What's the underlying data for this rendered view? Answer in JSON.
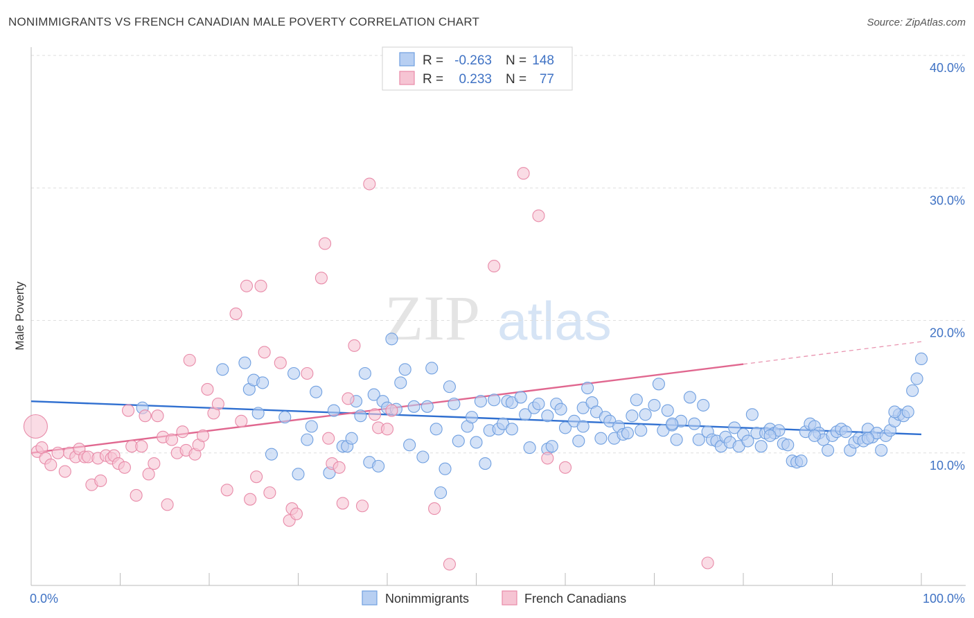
{
  "chart_data": {
    "type": "scatter",
    "title": "NONIMMIGRANTS VS FRENCH CANADIAN MALE POVERTY CORRELATION CHART",
    "source": "Source: ZipAtlas.com",
    "xlabel": "",
    "ylabel": "Male Poverty",
    "xlim": [
      0,
      100
    ],
    "ylim": [
      0,
      40
    ],
    "x_tick_labels": [
      "0.0%",
      "100.0%"
    ],
    "y_ticks": [
      10,
      20,
      30,
      40
    ],
    "y_tick_labels": [
      "10.0%",
      "20.0%",
      "30.0%",
      "40.0%"
    ],
    "grid": true,
    "legend_position": "top-center",
    "watermark": "ZIPatlas",
    "stats": [
      {
        "r_label": "R =",
        "r": "-0.263",
        "n_label": "N =",
        "n": "148"
      },
      {
        "r_label": "R =",
        "r": "0.233",
        "n_label": "N =",
        "n": "77"
      }
    ],
    "series": [
      {
        "name": "Nonimmigrants",
        "color": "#6f9fe0",
        "fill": "#b7cff2",
        "line_color": "#2f6fd0",
        "trend": {
          "x": [
            0,
            100
          ],
          "y": [
            13.9,
            11.4
          ]
        },
        "points": [
          [
            12.5,
            13.4
          ],
          [
            21.5,
            16.3
          ],
          [
            24.0,
            16.8
          ],
          [
            24.5,
            14.8
          ],
          [
            25.0,
            15.5
          ],
          [
            25.5,
            13.0
          ],
          [
            26.0,
            15.3
          ],
          [
            27.0,
            9.9
          ],
          [
            28.5,
            12.7
          ],
          [
            29.5,
            16.0
          ],
          [
            30.0,
            8.4
          ],
          [
            31.0,
            11.0
          ],
          [
            31.5,
            12.0
          ],
          [
            32.0,
            14.6
          ],
          [
            33.5,
            8.5
          ],
          [
            34.0,
            13.2
          ],
          [
            35.0,
            10.5
          ],
          [
            35.5,
            10.5
          ],
          [
            36.0,
            11.1
          ],
          [
            36.5,
            13.9
          ],
          [
            37.0,
            12.8
          ],
          [
            37.5,
            16.0
          ],
          [
            38.0,
            9.3
          ],
          [
            38.5,
            14.4
          ],
          [
            39.0,
            9.0
          ],
          [
            39.5,
            13.9
          ],
          [
            40.0,
            13.4
          ],
          [
            40.5,
            18.6
          ],
          [
            41.0,
            13.3
          ],
          [
            41.5,
            15.3
          ],
          [
            42.0,
            16.3
          ],
          [
            42.5,
            10.6
          ],
          [
            43.0,
            13.5
          ],
          [
            44.0,
            9.7
          ],
          [
            44.5,
            13.5
          ],
          [
            45.0,
            16.4
          ],
          [
            45.5,
            11.8
          ],
          [
            46.0,
            7.0
          ],
          [
            46.5,
            8.8
          ],
          [
            47.0,
            15.0
          ],
          [
            47.5,
            13.7
          ],
          [
            48.0,
            10.9
          ],
          [
            49.0,
            12.0
          ],
          [
            49.5,
            12.7
          ],
          [
            50.0,
            10.8
          ],
          [
            50.5,
            13.9
          ],
          [
            51.0,
            9.2
          ],
          [
            51.5,
            11.7
          ],
          [
            52.0,
            14.0
          ],
          [
            52.5,
            11.8
          ],
          [
            53.0,
            12.2
          ],
          [
            53.5,
            13.9
          ],
          [
            54.0,
            13.8
          ],
          [
            55.0,
            14.2
          ],
          [
            55.5,
            12.9
          ],
          [
            56.0,
            10.4
          ],
          [
            56.5,
            13.4
          ],
          [
            57.0,
            13.7
          ],
          [
            58.0,
            10.3
          ],
          [
            58.5,
            10.5
          ],
          [
            59.0,
            13.7
          ],
          [
            59.5,
            13.3
          ],
          [
            60.0,
            11.9
          ],
          [
            61.0,
            12.4
          ],
          [
            61.5,
            10.9
          ],
          [
            62.0,
            13.4
          ],
          [
            62.5,
            14.9
          ],
          [
            63.0,
            13.8
          ],
          [
            63.5,
            13.1
          ],
          [
            64.0,
            11.1
          ],
          [
            64.5,
            12.7
          ],
          [
            65.0,
            12.4
          ],
          [
            65.5,
            11.1
          ],
          [
            66.0,
            12.0
          ],
          [
            66.5,
            11.4
          ],
          [
            67.0,
            11.5
          ],
          [
            67.5,
            12.8
          ],
          [
            68.0,
            14.0
          ],
          [
            68.5,
            11.7
          ],
          [
            69.0,
            12.9
          ],
          [
            70.0,
            13.6
          ],
          [
            70.5,
            15.2
          ],
          [
            71.0,
            11.7
          ],
          [
            71.5,
            13.2
          ],
          [
            72.0,
            12.1
          ],
          [
            72.5,
            11.0
          ],
          [
            73.0,
            12.4
          ],
          [
            74.0,
            14.2
          ],
          [
            74.5,
            12.2
          ],
          [
            75.0,
            11.0
          ],
          [
            75.5,
            13.6
          ],
          [
            76.0,
            11.6
          ],
          [
            76.5,
            11.0
          ],
          [
            77.0,
            10.9
          ],
          [
            77.5,
            10.5
          ],
          [
            78.0,
            11.2
          ],
          [
            78.5,
            10.8
          ],
          [
            79.0,
            11.9
          ],
          [
            79.5,
            10.5
          ],
          [
            80.0,
            11.4
          ],
          [
            80.5,
            10.9
          ],
          [
            81.0,
            12.9
          ],
          [
            81.5,
            11.5
          ],
          [
            82.0,
            10.5
          ],
          [
            82.5,
            11.5
          ],
          [
            83.0,
            11.8
          ],
          [
            83.5,
            11.5
          ],
          [
            84.0,
            11.7
          ],
          [
            84.5,
            10.7
          ],
          [
            85.0,
            10.6
          ],
          [
            85.5,
            9.4
          ],
          [
            86.0,
            9.3
          ],
          [
            86.5,
            9.4
          ],
          [
            87.0,
            11.6
          ],
          [
            87.5,
            12.2
          ],
          [
            88.0,
            12.0
          ],
          [
            88.5,
            11.5
          ],
          [
            89.0,
            11.0
          ],
          [
            89.5,
            10.2
          ],
          [
            90.0,
            11.3
          ],
          [
            90.5,
            11.6
          ],
          [
            91.0,
            11.8
          ],
          [
            91.5,
            11.6
          ],
          [
            92.0,
            10.2
          ],
          [
            92.5,
            10.8
          ],
          [
            93.0,
            11.1
          ],
          [
            93.5,
            10.9
          ],
          [
            94.0,
            11.8
          ],
          [
            94.5,
            11.2
          ],
          [
            95.0,
            11.5
          ],
          [
            95.5,
            10.2
          ],
          [
            96.0,
            11.3
          ],
          [
            96.5,
            11.7
          ],
          [
            97.0,
            12.4
          ],
          [
            97.5,
            12.9
          ],
          [
            98.0,
            12.8
          ],
          [
            98.5,
            13.1
          ],
          [
            99.0,
            14.7
          ],
          [
            99.5,
            15.6
          ],
          [
            100.0,
            17.1
          ],
          [
            72.0,
            12.2
          ],
          [
            83.0,
            11.3
          ],
          [
            88.0,
            11.3
          ],
          [
            94.0,
            11.1
          ],
          [
            62.0,
            12.0
          ],
          [
            58.0,
            12.8
          ],
          [
            54.0,
            11.8
          ],
          [
            97.0,
            13.1
          ]
        ]
      },
      {
        "name": "French Canadians",
        "color": "#e88aa8",
        "fill": "#f6c4d3",
        "line_color": "#e0678f",
        "trend": {
          "x": [
            0,
            80
          ],
          "y": [
            10.0,
            16.7
          ]
        },
        "trend_dashed": {
          "x": [
            80,
            100
          ],
          "y": [
            16.7,
            18.4
          ]
        },
        "points": [
          [
            0.5,
            12.0
          ],
          [
            0.7,
            10.1
          ],
          [
            1.2,
            10.4
          ],
          [
            1.6,
            9.6
          ],
          [
            2.2,
            9.1
          ],
          [
            3.0,
            10.0
          ],
          [
            3.8,
            8.6
          ],
          [
            4.3,
            10.0
          ],
          [
            5.0,
            9.7
          ],
          [
            5.4,
            10.3
          ],
          [
            6.0,
            9.7
          ],
          [
            6.4,
            9.7
          ],
          [
            6.8,
            7.6
          ],
          [
            7.5,
            9.6
          ],
          [
            7.8,
            7.9
          ],
          [
            8.4,
            9.8
          ],
          [
            9.0,
            9.6
          ],
          [
            9.3,
            9.8
          ],
          [
            9.8,
            9.2
          ],
          [
            10.5,
            8.9
          ],
          [
            10.9,
            13.2
          ],
          [
            11.3,
            10.5
          ],
          [
            11.8,
            6.8
          ],
          [
            12.4,
            10.5
          ],
          [
            12.8,
            12.8
          ],
          [
            13.2,
            8.4
          ],
          [
            13.8,
            9.2
          ],
          [
            14.2,
            12.8
          ],
          [
            14.8,
            11.2
          ],
          [
            15.3,
            6.1
          ],
          [
            15.8,
            11.0
          ],
          [
            16.4,
            10.0
          ],
          [
            17.0,
            11.6
          ],
          [
            17.4,
            10.2
          ],
          [
            17.8,
            17.0
          ],
          [
            18.4,
            9.9
          ],
          [
            18.8,
            10.6
          ],
          [
            19.3,
            11.3
          ],
          [
            19.8,
            14.8
          ],
          [
            20.5,
            13.0
          ],
          [
            21.0,
            13.7
          ],
          [
            22.0,
            7.2
          ],
          [
            23.0,
            20.5
          ],
          [
            23.6,
            12.4
          ],
          [
            24.2,
            22.6
          ],
          [
            24.6,
            6.5
          ],
          [
            25.3,
            8.2
          ],
          [
            25.8,
            22.6
          ],
          [
            26.2,
            17.6
          ],
          [
            26.8,
            7.0
          ],
          [
            28.0,
            16.8
          ],
          [
            29.0,
            4.9
          ],
          [
            29.3,
            5.8
          ],
          [
            29.8,
            5.4
          ],
          [
            31.0,
            16.0
          ],
          [
            32.6,
            23.2
          ],
          [
            33.0,
            25.8
          ],
          [
            33.4,
            11.1
          ],
          [
            33.8,
            9.2
          ],
          [
            34.6,
            8.9
          ],
          [
            35.0,
            6.2
          ],
          [
            35.6,
            14.1
          ],
          [
            36.3,
            18.1
          ],
          [
            37.2,
            6.0
          ],
          [
            38.0,
            30.3
          ],
          [
            38.6,
            12.9
          ],
          [
            39.0,
            11.9
          ],
          [
            40.0,
            11.8
          ],
          [
            45.3,
            5.8
          ],
          [
            47.0,
            1.6
          ],
          [
            52.0,
            24.1
          ],
          [
            55.3,
            31.1
          ],
          [
            57.0,
            27.9
          ],
          [
            58.0,
            9.6
          ],
          [
            60.0,
            8.9
          ],
          [
            76.0,
            1.7
          ],
          [
            40.5,
            13.2
          ]
        ]
      }
    ]
  },
  "bottom_legend": [
    "Nonimmigrants",
    "French Canadians"
  ]
}
